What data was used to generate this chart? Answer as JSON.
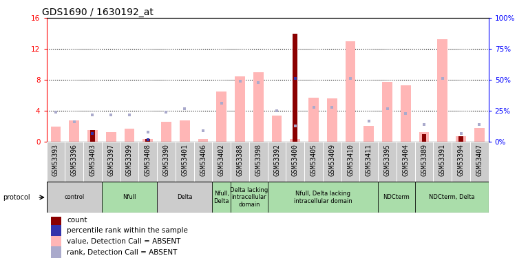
{
  "title": "GDS1690 / 1630192_at",
  "samples": [
    "GSM53393",
    "GSM53396",
    "GSM53403",
    "GSM53397",
    "GSM53399",
    "GSM53408",
    "GSM53390",
    "GSM53401",
    "GSM53406",
    "GSM53402",
    "GSM53388",
    "GSM53398",
    "GSM53392",
    "GSM53400",
    "GSM53405",
    "GSM53409",
    "GSM53410",
    "GSM53411",
    "GSM53395",
    "GSM53404",
    "GSM53389",
    "GSM53391",
    "GSM53394",
    "GSM53407"
  ],
  "value_absent": [
    2.0,
    2.8,
    1.5,
    1.3,
    1.7,
    0.4,
    2.6,
    2.8,
    0.4,
    6.5,
    8.5,
    9.0,
    3.4,
    0.35,
    5.7,
    5.6,
    13.0,
    2.1,
    7.8,
    7.3,
    1.3,
    13.3,
    0.7,
    1.8
  ],
  "rank_absent_pct": [
    24,
    16,
    22,
    22,
    22,
    8,
    24,
    27,
    9,
    31,
    49,
    48,
    25,
    13,
    28,
    28,
    51,
    17,
    27,
    23,
    14,
    51,
    7,
    14
  ],
  "count_val": [
    0,
    0,
    1.5,
    0,
    0,
    0.4,
    0,
    0,
    0,
    0,
    0,
    0,
    0,
    14.0,
    0,
    0,
    0,
    0,
    0,
    0,
    1.0,
    0,
    0.7,
    0
  ],
  "rank_count_pct": [
    0,
    0,
    7,
    0,
    0,
    2,
    0,
    0,
    0,
    0,
    0,
    0,
    0,
    51,
    0,
    0,
    0,
    0,
    0,
    0,
    0,
    0,
    0,
    0
  ],
  "groups": [
    {
      "label": "control",
      "start": 0,
      "end": 3,
      "color": "#cccccc"
    },
    {
      "label": "Nfull",
      "start": 3,
      "end": 6,
      "color": "#aaddaa"
    },
    {
      "label": "Delta",
      "start": 6,
      "end": 9,
      "color": "#cccccc"
    },
    {
      "label": "Nfull,\nDelta",
      "start": 9,
      "end": 10,
      "color": "#aaddaa"
    },
    {
      "label": "Delta lacking\nintracellular\ndomain",
      "start": 10,
      "end": 12,
      "color": "#aaddaa"
    },
    {
      "label": "Nfull, Delta lacking\nintracellular domain",
      "start": 12,
      "end": 18,
      "color": "#aaddaa"
    },
    {
      "label": "NDCterm",
      "start": 18,
      "end": 20,
      "color": "#aaddaa"
    },
    {
      "label": "NDCterm, Delta",
      "start": 20,
      "end": 24,
      "color": "#aaddaa"
    }
  ],
  "ylim_left": [
    0,
    16
  ],
  "ylim_right": [
    0,
    100
  ],
  "yticks_left": [
    0,
    4,
    8,
    12,
    16
  ],
  "yticks_right": [
    0,
    25,
    50,
    75,
    100
  ],
  "bar_color_absent": "#ffb6b6",
  "bar_color_count": "#8b0000",
  "rank_absent_color": "#aaaacc",
  "rank_count_color": "#3333aa",
  "title_fontsize": 10,
  "tick_fontsize": 7,
  "group_label_fontsize": 6,
  "legend_fontsize": 7.5
}
